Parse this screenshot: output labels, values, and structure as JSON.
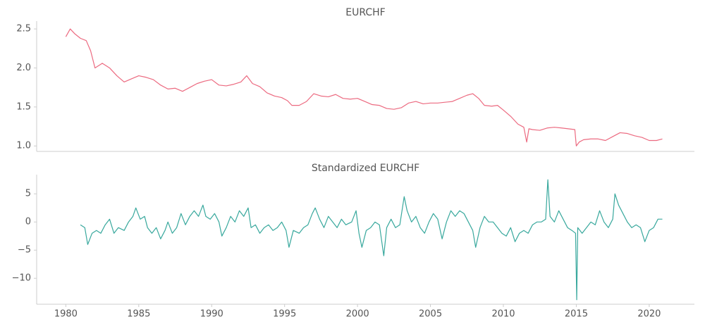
{
  "chart_data": [
    {
      "type": "line",
      "title": "EURCHF",
      "color": "#ec6a80",
      "xlim": [
        1978,
        2023.1
      ],
      "ylim": [
        0.93,
        2.6
      ],
      "yticks": [
        {
          "value": 1,
          "label": "1.0"
        },
        1.5,
        {
          "value": 2,
          "label": "2.0"
        },
        2.5
      ],
      "x": [
        1980.0,
        1980.3,
        1980.6,
        1981.0,
        1981.4,
        1981.7,
        1982.0,
        1982.5,
        1983.0,
        1983.5,
        1984.0,
        1984.5,
        1985.0,
        1985.5,
        1986.0,
        1986.5,
        1987.0,
        1987.5,
        1988.0,
        1988.5,
        1989.0,
        1989.5,
        1990.0,
        1990.5,
        1991.0,
        1991.5,
        1992.0,
        1992.4,
        1992.8,
        1993.3,
        1993.8,
        1994.3,
        1994.8,
        1995.2,
        1995.5,
        1996.0,
        1996.5,
        1997.0,
        1997.5,
        1998.0,
        1998.5,
        1999.0,
        1999.5,
        2000.0,
        2000.5,
        2001.0,
        2001.5,
        2002.0,
        2002.5,
        2003.0,
        2003.5,
        2004.0,
        2004.5,
        2005.0,
        2005.5,
        2006.0,
        2006.5,
        2007.0,
        2007.5,
        2007.9,
        2008.3,
        2008.7,
        2009.2,
        2009.6,
        2010.0,
        2010.5,
        2011.0,
        2011.4,
        2011.6,
        2011.75,
        2012.0,
        2012.5,
        2013.0,
        2013.5,
        2014.0,
        2014.9,
        2015.0,
        2015.2,
        2015.5,
        2016.0,
        2016.5,
        2017.0,
        2017.5,
        2018.0,
        2018.5,
        2019.0,
        2019.5,
        2020.0,
        2020.5,
        2020.9
      ],
      "values": [
        2.4,
        2.5,
        2.44,
        2.38,
        2.35,
        2.22,
        2.0,
        2.06,
        2.0,
        1.9,
        1.82,
        1.86,
        1.9,
        1.88,
        1.85,
        1.78,
        1.73,
        1.74,
        1.7,
        1.75,
        1.8,
        1.83,
        1.85,
        1.78,
        1.77,
        1.79,
        1.82,
        1.9,
        1.8,
        1.76,
        1.68,
        1.64,
        1.62,
        1.58,
        1.52,
        1.52,
        1.57,
        1.67,
        1.64,
        1.63,
        1.66,
        1.61,
        1.6,
        1.61,
        1.57,
        1.53,
        1.52,
        1.48,
        1.47,
        1.49,
        1.55,
        1.57,
        1.54,
        1.55,
        1.55,
        1.56,
        1.57,
        1.61,
        1.65,
        1.67,
        1.61,
        1.52,
        1.51,
        1.52,
        1.46,
        1.38,
        1.28,
        1.24,
        1.05,
        1.22,
        1.21,
        1.2,
        1.23,
        1.24,
        1.23,
        1.21,
        1.0,
        1.05,
        1.08,
        1.09,
        1.09,
        1.07,
        1.12,
        1.17,
        1.16,
        1.13,
        1.11,
        1.07,
        1.07,
        1.09
      ]
    },
    {
      "type": "line",
      "title": "Standardized EURCHF",
      "color": "#38a89d",
      "xlim": [
        1978,
        2023.1
      ],
      "ylim": [
        -14.6,
        8.4
      ],
      "xticks": [
        1980,
        1985,
        1990,
        1995,
        2000,
        2005,
        2010,
        2015,
        2020
      ],
      "yticks": [
        5,
        0,
        {
          "value": -5,
          "label": "−5"
        },
        {
          "value": -10,
          "label": "−10"
        }
      ],
      "x": [
        1981.0,
        1981.3,
        1981.5,
        1981.8,
        1982.1,
        1982.4,
        1982.7,
        1983.0,
        1983.3,
        1983.6,
        1984.0,
        1984.3,
        1984.6,
        1984.8,
        1985.1,
        1985.4,
        1985.6,
        1985.9,
        1986.2,
        1986.5,
        1986.8,
        1987.0,
        1987.3,
        1987.6,
        1987.9,
        1988.2,
        1988.5,
        1988.8,
        1989.1,
        1989.4,
        1989.6,
        1989.9,
        1990.2,
        1990.5,
        1990.7,
        1991.0,
        1991.3,
        1991.6,
        1991.9,
        1992.2,
        1992.5,
        1992.7,
        1993.0,
        1993.3,
        1993.6,
        1993.9,
        1994.2,
        1994.5,
        1994.8,
        1995.1,
        1995.3,
        1995.6,
        1996.0,
        1996.3,
        1996.6,
        1996.9,
        1997.1,
        1997.4,
        1997.7,
        1998.0,
        1998.3,
        1998.6,
        1998.9,
        1999.2,
        1999.6,
        1999.9,
        2000.1,
        2000.3,
        2000.6,
        2000.9,
        2001.2,
        2001.5,
        2001.8,
        2002.0,
        2002.3,
        2002.6,
        2002.9,
        2003.2,
        2003.4,
        2003.7,
        2004.0,
        2004.3,
        2004.6,
        2004.9,
        2005.2,
        2005.5,
        2005.8,
        2006.1,
        2006.4,
        2006.7,
        2007.0,
        2007.3,
        2007.6,
        2007.9,
        2008.1,
        2008.4,
        2008.7,
        2009.0,
        2009.3,
        2009.6,
        2009.9,
        2010.2,
        2010.5,
        2010.8,
        2011.1,
        2011.4,
        2011.7,
        2012.0,
        2012.3,
        2012.6,
        2012.9,
        2013.05,
        2013.2,
        2013.5,
        2013.8,
        2014.1,
        2014.4,
        2014.7,
        2014.95,
        2015.03,
        2015.1,
        2015.4,
        2015.7,
        2016.0,
        2016.3,
        2016.6,
        2016.9,
        2017.2,
        2017.5,
        2017.65,
        2017.9,
        2018.2,
        2018.5,
        2018.8,
        2019.1,
        2019.4,
        2019.7,
        2020.0,
        2020.3,
        2020.6,
        2020.9
      ],
      "values": [
        -0.5,
        -1,
        -4,
        -2,
        -1.5,
        -2,
        -0.5,
        0.5,
        -2,
        -1,
        -1.5,
        0,
        1,
        2.5,
        0.5,
        1,
        -1,
        -2,
        -1,
        -3,
        -1.5,
        0,
        -2,
        -1,
        1.5,
        -0.5,
        1,
        2,
        1,
        3,
        1,
        0.5,
        1.5,
        0,
        -2.5,
        -1,
        1,
        0,
        2,
        1,
        2.5,
        -1,
        -0.5,
        -2,
        -1,
        -0.5,
        -1.5,
        -1,
        0,
        -1.5,
        -4.5,
        -1.5,
        -2,
        -1,
        -0.5,
        1.5,
        2.5,
        0.5,
        -1,
        1,
        0,
        -1,
        0.5,
        -0.5,
        0,
        2,
        -2,
        -4.5,
        -1.5,
        -1,
        0,
        -0.5,
        -6,
        -1,
        0.5,
        -1,
        -0.5,
        4.5,
        2,
        0,
        1,
        -1,
        -2,
        0,
        1.5,
        0.5,
        -3,
        0,
        2,
        1,
        2,
        1.5,
        0,
        -1.5,
        -4.5,
        -1,
        1,
        0,
        0,
        -1,
        -2,
        -2.5,
        -1,
        -3.5,
        -2,
        -1.5,
        -2,
        -0.5,
        0,
        0,
        0.5,
        7.5,
        1,
        0,
        2,
        0.5,
        -1,
        -1.5,
        -2,
        -13.8,
        -1,
        -2,
        -1,
        0,
        -0.5,
        2,
        0,
        -1,
        0.5,
        5,
        3,
        1.5,
        0,
        -1,
        -0.5,
        -1,
        -3.5,
        -1.5,
        -1,
        0.5,
        0.5
      ]
    }
  ]
}
